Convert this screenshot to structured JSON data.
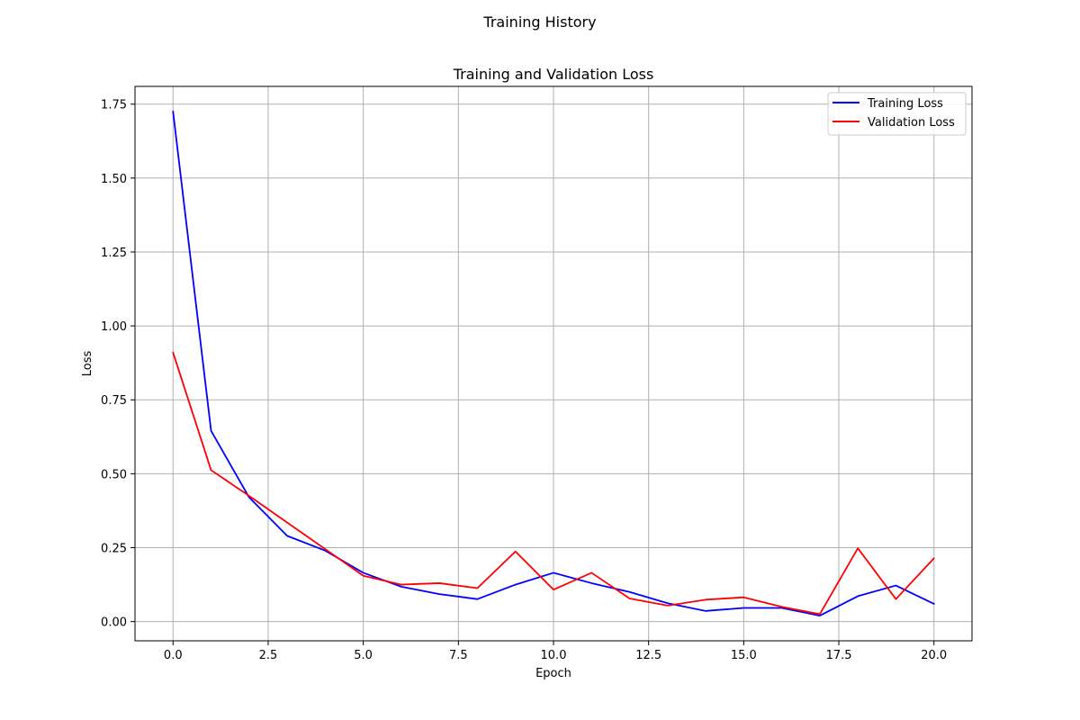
{
  "figure": {
    "suptitle": "Training History"
  },
  "chart_data": {
    "type": "line",
    "title": "Training and Validation Loss",
    "xlabel": "Epoch",
    "ylabel": "Loss",
    "xlim": [
      -1,
      21
    ],
    "ylim": [
      -0.065,
      1.81
    ],
    "xticks": [
      0.0,
      2.5,
      5.0,
      7.5,
      10.0,
      12.5,
      15.0,
      17.5,
      20.0
    ],
    "xtick_labels": [
      "0.0",
      "2.5",
      "5.0",
      "7.5",
      "10.0",
      "12.5",
      "15.0",
      "17.5",
      "20.0"
    ],
    "yticks": [
      0.0,
      0.25,
      0.5,
      0.75,
      1.0,
      1.25,
      1.5,
      1.75
    ],
    "ytick_labels": [
      "0.00",
      "0.25",
      "0.50",
      "0.75",
      "1.00",
      "1.25",
      "1.50",
      "1.75"
    ],
    "grid": true,
    "legend_position": "top-right",
    "x": [
      0,
      1,
      2,
      3,
      4,
      5,
      6,
      7,
      8,
      9,
      10,
      11,
      12,
      13,
      14,
      15,
      16,
      17,
      18,
      19,
      20
    ],
    "series": [
      {
        "name": "Training Loss",
        "color": "#0000ff",
        "values": [
          1.725,
          0.645,
          0.42,
          0.29,
          0.24,
          0.165,
          0.118,
          0.093,
          0.076,
          0.125,
          0.165,
          0.13,
          0.1,
          0.062,
          0.036,
          0.046,
          0.046,
          0.02,
          0.086,
          0.122,
          0.06
        ]
      },
      {
        "name": "Validation Loss",
        "color": "#ff0000",
        "values": [
          0.91,
          0.512,
          0.425,
          0.335,
          0.245,
          0.155,
          0.125,
          0.13,
          0.113,
          0.237,
          0.108,
          0.165,
          0.078,
          0.054,
          0.074,
          0.082,
          0.05,
          0.025,
          0.248,
          0.076,
          0.214
        ]
      }
    ]
  }
}
